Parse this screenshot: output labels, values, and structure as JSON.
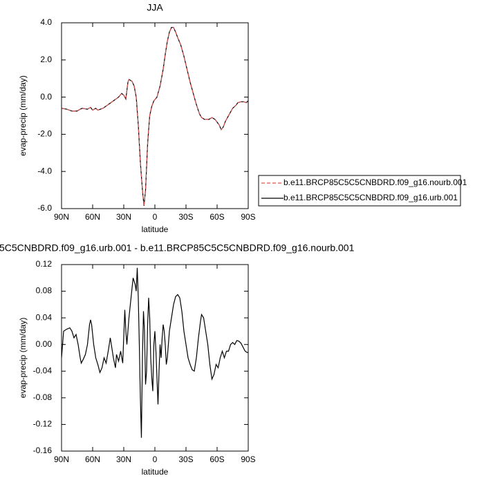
{
  "chart_data": [
    {
      "type": "line",
      "title": "JJA",
      "ylabel": "evap-precip (mm/day)",
      "xlabel": "latitude",
      "legend": "right",
      "x": [
        90,
        85,
        80,
        75,
        72,
        70,
        65,
        62,
        60,
        57,
        55,
        50,
        45,
        40,
        35,
        32,
        30,
        28,
        26,
        25,
        22,
        20,
        18,
        16,
        14,
        12,
        10.5,
        9,
        7,
        5,
        3,
        1,
        -2,
        -5,
        -8,
        -10,
        -12,
        -14,
        -16,
        -18,
        -20,
        -22,
        -25,
        -28,
        -31,
        -34,
        -37,
        -40,
        -43,
        -45,
        -48,
        -52,
        -55,
        -58,
        -60,
        -62,
        -64,
        -66,
        -68,
        -70,
        -72,
        -75,
        -78,
        -80,
        -83,
        -86,
        -88,
        -90
      ],
      "series": [
        {
          "name": "b.e11.BRCP85C5C5CNBDRD.f09_g16.nourb.001",
          "color": "#d9534f",
          "line_style": "dashed",
          "values": [
            -0.6,
            -0.65,
            -0.75,
            -0.75,
            -0.65,
            -0.6,
            -0.65,
            -0.55,
            -0.7,
            -0.6,
            -0.7,
            -0.6,
            -0.4,
            -0.2,
            0.0,
            0.2,
            0.1,
            -0.1,
            0.8,
            0.95,
            0.85,
            0.6,
            0.0,
            -1.5,
            -3.5,
            -5.0,
            -5.85,
            -5.0,
            -2.5,
            -1.0,
            -0.5,
            -0.2,
            0.0,
            0.6,
            1.5,
            2.3,
            3.0,
            3.5,
            3.75,
            3.75,
            3.5,
            3.2,
            2.8,
            2.2,
            1.5,
            0.8,
            0.2,
            -0.4,
            -0.9,
            -1.1,
            -1.2,
            -1.2,
            -1.1,
            -1.2,
            -1.35,
            -1.5,
            -1.75,
            -1.6,
            -1.3,
            -1.1,
            -0.9,
            -0.6,
            -0.45,
            -0.3,
            -0.25,
            -0.25,
            -0.3,
            -0.2
          ]
        },
        {
          "name": "b.e11.BRCP85C5C5CNBDRD.f09_g16.urb.001",
          "color": "#000000",
          "line_style": "solid",
          "values": [
            -0.6,
            -0.65,
            -0.75,
            -0.75,
            -0.65,
            -0.6,
            -0.65,
            -0.55,
            -0.7,
            -0.6,
            -0.7,
            -0.6,
            -0.4,
            -0.2,
            0.0,
            0.2,
            0.1,
            -0.1,
            0.8,
            0.95,
            0.85,
            0.6,
            0.0,
            -1.5,
            -3.5,
            -5.0,
            -5.85,
            -5.0,
            -2.5,
            -1.0,
            -0.5,
            -0.2,
            0.0,
            0.6,
            1.5,
            2.3,
            3.0,
            3.5,
            3.75,
            3.75,
            3.5,
            3.2,
            2.8,
            2.2,
            1.5,
            0.8,
            0.2,
            -0.4,
            -0.9,
            -1.1,
            -1.2,
            -1.2,
            -1.1,
            -1.2,
            -1.35,
            -1.5,
            -1.75,
            -1.6,
            -1.3,
            -1.1,
            -0.9,
            -0.6,
            -0.45,
            -0.3,
            -0.25,
            -0.25,
            -0.3,
            -0.2
          ]
        }
      ],
      "xlim": [
        90,
        -90
      ],
      "xticks": [
        {
          "value": 90,
          "label": "90N"
        },
        {
          "value": 60,
          "label": "60N"
        },
        {
          "value": 30,
          "label": "30N"
        },
        0,
        {
          "value": -30,
          "label": "30S"
        },
        {
          "value": -60,
          "label": "60S"
        },
        {
          "value": -90,
          "label": "90S"
        }
      ],
      "ylim": [
        -6,
        4
      ],
      "yticks": [
        {
          "value": 4,
          "label": "4.0"
        },
        {
          "value": 2,
          "label": "2.0"
        },
        {
          "value": 0,
          "label": "0.0"
        },
        {
          "value": -2,
          "label": "-2.0"
        },
        {
          "value": -4,
          "label": "-4.0"
        },
        {
          "value": -6,
          "label": "-6.0"
        }
      ]
    },
    {
      "type": "line",
      "title": "5C5CNBDRD.f09_g16.urb.001 - b.e11.BRCP85C5C5CNBDRD.f09_g16.nourb.001",
      "ylabel": "evap-precip (mm/day)",
      "xlabel": "latitude",
      "color": "#000000",
      "x": [
        90,
        89,
        88,
        85,
        82,
        80,
        78,
        76,
        74,
        72,
        71,
        69,
        67,
        65,
        63,
        62,
        61,
        59,
        57,
        55,
        53,
        51,
        49,
        47,
        45,
        43,
        42,
        40,
        38,
        37,
        35,
        33,
        31,
        29,
        28,
        27,
        25,
        23,
        21,
        19,
        18,
        17,
        16,
        15,
        14,
        13,
        12,
        11,
        10,
        9,
        8,
        7,
        6,
        5,
        4,
        3,
        2,
        1,
        0,
        -1,
        -2,
        -3,
        -4,
        -5,
        -6,
        -7,
        -8,
        -9,
        -10,
        -11,
        -12,
        -13,
        -14,
        -16,
        -18,
        -20,
        -22,
        -24,
        -26,
        -28,
        -30,
        -32,
        -34,
        -36,
        -38,
        -40,
        -42,
        -44,
        -45,
        -47,
        -49,
        -51,
        -53,
        -55,
        -57,
        -59,
        -61,
        -63,
        -65,
        -67,
        -69,
        -71,
        -73,
        -75,
        -77,
        -79,
        -81,
        -83,
        -85,
        -87,
        -89,
        -90
      ],
      "values": [
        -0.02,
        0.0,
        0.02,
        0.023,
        0.025,
        0.02,
        0.01,
        0.015,
        0.0,
        -0.02,
        -0.028,
        -0.022,
        -0.015,
        0.0,
        0.03,
        0.037,
        0.03,
        0.0,
        -0.02,
        -0.03,
        -0.042,
        -0.035,
        -0.02,
        -0.028,
        -0.01,
        0.01,
        0.0,
        -0.02,
        -0.035,
        -0.015,
        -0.025,
        -0.01,
        -0.028,
        0.052,
        0.02,
        0.0,
        0.04,
        0.07,
        0.1,
        0.09,
        0.08,
        0.115,
        0.07,
        0.0,
        -0.08,
        -0.14,
        -0.02,
        0.05,
        0.02,
        -0.06,
        -0.04,
        0.03,
        0.07,
        0.04,
        -0.02,
        -0.05,
        -0.07,
        0.0,
        0.02,
        -0.01,
        -0.05,
        -0.09,
        -0.04,
        0.0,
        -0.02,
        0.01,
        0.03,
        0.02,
        0.0,
        -0.03,
        -0.02,
        0.0,
        0.02,
        0.04,
        0.06,
        0.072,
        0.075,
        0.07,
        0.05,
        0.02,
        0.0,
        -0.02,
        -0.03,
        -0.038,
        -0.04,
        -0.02,
        0.01,
        0.035,
        0.045,
        0.04,
        0.02,
        0.0,
        -0.03,
        -0.052,
        -0.045,
        -0.03,
        -0.035,
        -0.02,
        -0.01,
        -0.02,
        -0.01,
        -0.01,
        0.0,
        0.003,
        0.0,
        0.006,
        0.005,
        0.002,
        -0.004,
        -0.01,
        -0.012,
        -0.012
      ],
      "xlim": [
        90,
        -90
      ],
      "xticks": [
        {
          "value": 90,
          "label": "90N"
        },
        {
          "value": 60,
          "label": "60N"
        },
        {
          "value": 30,
          "label": "30N"
        },
        0,
        {
          "value": -30,
          "label": "30S"
        },
        {
          "value": -60,
          "label": "60S"
        },
        {
          "value": -90,
          "label": "90S"
        }
      ],
      "ylim": [
        -0.16,
        0.12
      ],
      "yticks": [
        0.12,
        0.08,
        0.04,
        {
          "value": 0,
          "label": "0.00"
        },
        -0.04,
        -0.08,
        -0.12,
        -0.16
      ]
    }
  ]
}
